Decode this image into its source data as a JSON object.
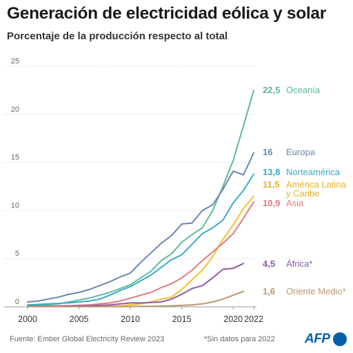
{
  "header": {
    "title": "Generación de electricidad eólica y solar",
    "subtitle": "Porcentaje de la producción respecto al total"
  },
  "footer": {
    "source": "Fuente: Ember Global Electricity Review 2023",
    "note": "*Sin datos para 2022",
    "logo_text": "AFP"
  },
  "chart_data": {
    "type": "line",
    "title": "Generación de electricidad eólica y solar",
    "subtitle": "Porcentaje de la producción respecto al total",
    "xlabel": "",
    "ylabel": "",
    "xlim": [
      2000,
      2022
    ],
    "ylim": [
      0,
      25
    ],
    "x_ticks": [
      "2000",
      "2005",
      "2010",
      "2015",
      "2020",
      "2022"
    ],
    "x_tick_values": [
      2000,
      2005,
      2010,
      2015,
      2020,
      2022
    ],
    "y_ticks": [
      "0",
      "5",
      "10",
      "15",
      "20",
      "25"
    ],
    "y_tick_values": [
      0,
      5,
      10,
      15,
      20,
      25
    ],
    "grid": true,
    "legend": "inline labels at line ends",
    "series": [
      {
        "name": "Oceanía",
        "value_label": "22,5",
        "color": "#5fb89a",
        "x": [
          2000,
          2001,
          2002,
          2003,
          2004,
          2005,
          2006,
          2007,
          2008,
          2009,
          2010,
          2011,
          2012,
          2013,
          2014,
          2015,
          2016,
          2017,
          2018,
          2019,
          2020,
          2021,
          2022
        ],
        "values": [
          0.1,
          0.15,
          0.2,
          0.3,
          0.5,
          0.7,
          0.9,
          1.2,
          1.5,
          1.9,
          2.3,
          3.0,
          3.7,
          4.8,
          5.5,
          6.7,
          7.5,
          8.2,
          10.0,
          12.5,
          15.2,
          18.8,
          22.5
        ]
      },
      {
        "name": "Europa",
        "value_label": "16",
        "color": "#6b86ad",
        "x": [
          2000,
          2001,
          2002,
          2003,
          2004,
          2005,
          2006,
          2007,
          2008,
          2009,
          2010,
          2011,
          2012,
          2013,
          2014,
          2015,
          2016,
          2017,
          2018,
          2019,
          2020,
          2021,
          2022
        ],
        "values": [
          0.5,
          0.6,
          0.8,
          1.0,
          1.3,
          1.5,
          1.8,
          2.2,
          2.6,
          3.1,
          3.5,
          4.6,
          5.6,
          6.6,
          7.4,
          8.6,
          8.7,
          10.0,
          10.6,
          12.2,
          14.1,
          13.7,
          16.0
        ]
      },
      {
        "name": "Norteamérica",
        "value_label": "13,8",
        "color": "#3aaac4",
        "x": [
          2000,
          2001,
          2002,
          2003,
          2004,
          2005,
          2006,
          2007,
          2008,
          2009,
          2010,
          2011,
          2012,
          2013,
          2014,
          2015,
          2016,
          2017,
          2018,
          2019,
          2020,
          2021,
          2022
        ],
        "values": [
          0.2,
          0.25,
          0.3,
          0.35,
          0.4,
          0.5,
          0.6,
          0.8,
          1.2,
          1.7,
          2.1,
          2.7,
          3.3,
          4.1,
          4.9,
          5.4,
          6.5,
          7.6,
          8.2,
          9.0,
          10.8,
          12.1,
          13.8
        ]
      },
      {
        "name": "América Latina y Caribe",
        "name_lines": [
          "América Latina",
          "y Caribe"
        ],
        "value_label": "11,5",
        "color": "#f0c02d",
        "x": [
          2000,
          2001,
          2002,
          2003,
          2004,
          2005,
          2006,
          2007,
          2008,
          2009,
          2010,
          2011,
          2012,
          2013,
          2014,
          2015,
          2016,
          2017,
          2018,
          2019,
          2020,
          2021,
          2022
        ],
        "values": [
          0.05,
          0.05,
          0.05,
          0.05,
          0.05,
          0.05,
          0.05,
          0.05,
          0.1,
          0.1,
          0.2,
          0.3,
          0.5,
          0.8,
          1.0,
          1.8,
          2.8,
          3.8,
          5.2,
          7.0,
          8.5,
          10.2,
          11.5
        ]
      },
      {
        "name": "Asia",
        "value_label": "10,9",
        "color": "#e07a7a",
        "x": [
          2000,
          2001,
          2002,
          2003,
          2004,
          2005,
          2006,
          2007,
          2008,
          2009,
          2010,
          2011,
          2012,
          2013,
          2014,
          2015,
          2016,
          2017,
          2018,
          2019,
          2020,
          2021,
          2022
        ],
        "values": [
          0.05,
          0.05,
          0.05,
          0.1,
          0.1,
          0.15,
          0.2,
          0.3,
          0.4,
          0.6,
          0.9,
          1.2,
          1.5,
          2.0,
          2.4,
          3.0,
          3.8,
          4.8,
          5.7,
          6.6,
          7.6,
          9.2,
          10.9
        ]
      },
      {
        "name": "África",
        "name_suffix": "*",
        "value_label": "4,5",
        "color": "#8e5aa6",
        "x": [
          2000,
          2001,
          2002,
          2003,
          2004,
          2005,
          2006,
          2007,
          2008,
          2009,
          2010,
          2011,
          2012,
          2013,
          2014,
          2015,
          2016,
          2017,
          2018,
          2019,
          2020,
          2021
        ],
        "values": [
          0.05,
          0.05,
          0.05,
          0.05,
          0.1,
          0.1,
          0.1,
          0.15,
          0.2,
          0.3,
          0.4,
          0.4,
          0.45,
          0.5,
          0.8,
          1.3,
          1.9,
          2.2,
          3.0,
          3.9,
          4.0,
          4.5
        ]
      },
      {
        "name": "Oriente Medio",
        "name_suffix": "*",
        "value_label": "1,6",
        "color": "#b89870",
        "x": [
          2000,
          2001,
          2002,
          2003,
          2004,
          2005,
          2006,
          2007,
          2008,
          2009,
          2010,
          2011,
          2012,
          2013,
          2014,
          2015,
          2016,
          2017,
          2018,
          2019,
          2020,
          2021
        ],
        "values": [
          0.02,
          0.02,
          0.02,
          0.02,
          0.02,
          0.02,
          0.02,
          0.02,
          0.02,
          0.02,
          0.03,
          0.05,
          0.05,
          0.08,
          0.1,
          0.15,
          0.2,
          0.3,
          0.5,
          0.8,
          1.2,
          1.6
        ]
      }
    ],
    "label_colors": {
      "Oceanía": "#5fb89a",
      "Europa": "#6b86ad",
      "Norteamérica": "#3aaac4",
      "América Latina y Caribe": "#e8b41c",
      "Asia": "#e07a7a",
      "África": "#8e5aa6",
      "Oriente Medio": "#b89870"
    }
  }
}
